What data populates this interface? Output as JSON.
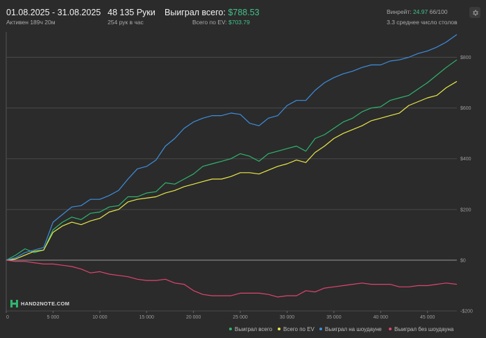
{
  "header": {
    "date_range": "01.08.2025 - 31.08.2025",
    "active_time": "Активен 189ч 20м",
    "hands": "48 135 Руки",
    "hands_per_hour": "254 рук в час",
    "won_total_label": "Выиграл всего:",
    "won_total_value": "$788.53",
    "ev_total_label": "Всего по EV:",
    "ev_total_value": "$703.79",
    "winrate_label": "Винрейт:",
    "winrate_value": "24.97",
    "winrate_sample": "66/100",
    "avg_tables": "3.3 среднее число столов",
    "settings_icon": "gear-icon"
  },
  "logo": {
    "text": "HAND2NOTE.COM",
    "icon": "hand2note-logo-icon"
  },
  "colors": {
    "won_total": "#2fb56e",
    "ev_total": "#e8e84a",
    "showdown": "#3d8fe0",
    "non_showdown": "#e0446f",
    "background": "#2b2b2b",
    "grid": "#4a4a4a"
  },
  "chart_data": {
    "type": "line",
    "xlabel": "",
    "ylabel": "",
    "xlim": [
      0,
      48135
    ],
    "ylim": [
      -200,
      900
    ],
    "x_ticks": [
      0,
      5000,
      10000,
      15000,
      20000,
      25000,
      30000,
      35000,
      40000,
      45000
    ],
    "x_tick_labels": [
      "0",
      "5 000",
      "10 000",
      "15 000",
      "20 000",
      "25 000",
      "30 000",
      "35 000",
      "40 000",
      "45 000"
    ],
    "y_ticks": [
      -200,
      0,
      200,
      400,
      600,
      800
    ],
    "y_tick_labels": [
      "-$200",
      "$0",
      "$200",
      "$400",
      "$600",
      "$800"
    ],
    "grid": "horizontal",
    "legend_position": "bottom-right",
    "x": [
      0,
      1000,
      2000,
      3000,
      4000,
      5000,
      6000,
      7000,
      8000,
      9000,
      10000,
      11000,
      12000,
      13000,
      14000,
      15000,
      16000,
      17000,
      18000,
      19000,
      20000,
      21000,
      22000,
      23000,
      24000,
      25000,
      26000,
      27000,
      28000,
      29000,
      30000,
      31000,
      32000,
      33000,
      34000,
      35000,
      36000,
      37000,
      38000,
      39000,
      40000,
      41000,
      42000,
      43000,
      44000,
      45000,
      46000,
      47000,
      48135
    ],
    "series": [
      {
        "name": "Выиграл всего",
        "key": "won_total",
        "values": [
          0,
          20,
          45,
          30,
          40,
          120,
          150,
          170,
          160,
          185,
          190,
          210,
          215,
          250,
          250,
          265,
          270,
          305,
          300,
          320,
          340,
          370,
          380,
          390,
          400,
          420,
          410,
          390,
          420,
          430,
          440,
          450,
          430,
          480,
          495,
          520,
          545,
          560,
          585,
          600,
          605,
          630,
          640,
          650,
          675,
          700,
          730,
          760,
          790
        ]
      },
      {
        "name": "Всего по EV",
        "key": "ev_total",
        "values": [
          0,
          5,
          20,
          35,
          40,
          110,
          135,
          150,
          140,
          155,
          165,
          190,
          200,
          230,
          240,
          245,
          250,
          265,
          275,
          290,
          300,
          310,
          320,
          320,
          330,
          345,
          345,
          340,
          355,
          370,
          380,
          395,
          385,
          425,
          450,
          480,
          500,
          515,
          530,
          550,
          560,
          570,
          580,
          610,
          625,
          640,
          650,
          680,
          705
        ]
      },
      {
        "name": "Выиграл на шоудауне",
        "key": "showdown",
        "values": [
          0,
          10,
          30,
          40,
          50,
          150,
          180,
          210,
          215,
          240,
          240,
          255,
          275,
          320,
          360,
          370,
          395,
          450,
          480,
          520,
          545,
          560,
          570,
          570,
          580,
          575,
          540,
          530,
          560,
          570,
          610,
          630,
          630,
          670,
          700,
          720,
          735,
          745,
          760,
          770,
          770,
          785,
          790,
          800,
          815,
          825,
          840,
          860,
          890
        ]
      },
      {
        "name": "Выиграл без шоудауна",
        "key": "non_showdown",
        "values": [
          0,
          -5,
          -5,
          -10,
          -15,
          -15,
          -20,
          -25,
          -35,
          -50,
          -45,
          -55,
          -60,
          -65,
          -75,
          -80,
          -80,
          -75,
          -90,
          -95,
          -120,
          -135,
          -140,
          -140,
          -140,
          -130,
          -130,
          -130,
          -135,
          -145,
          -140,
          -140,
          -120,
          -125,
          -110,
          -105,
          -100,
          -95,
          -90,
          -95,
          -95,
          -95,
          -105,
          -105,
          -100,
          -100,
          -95,
          -90,
          -95
        ]
      }
    ]
  }
}
